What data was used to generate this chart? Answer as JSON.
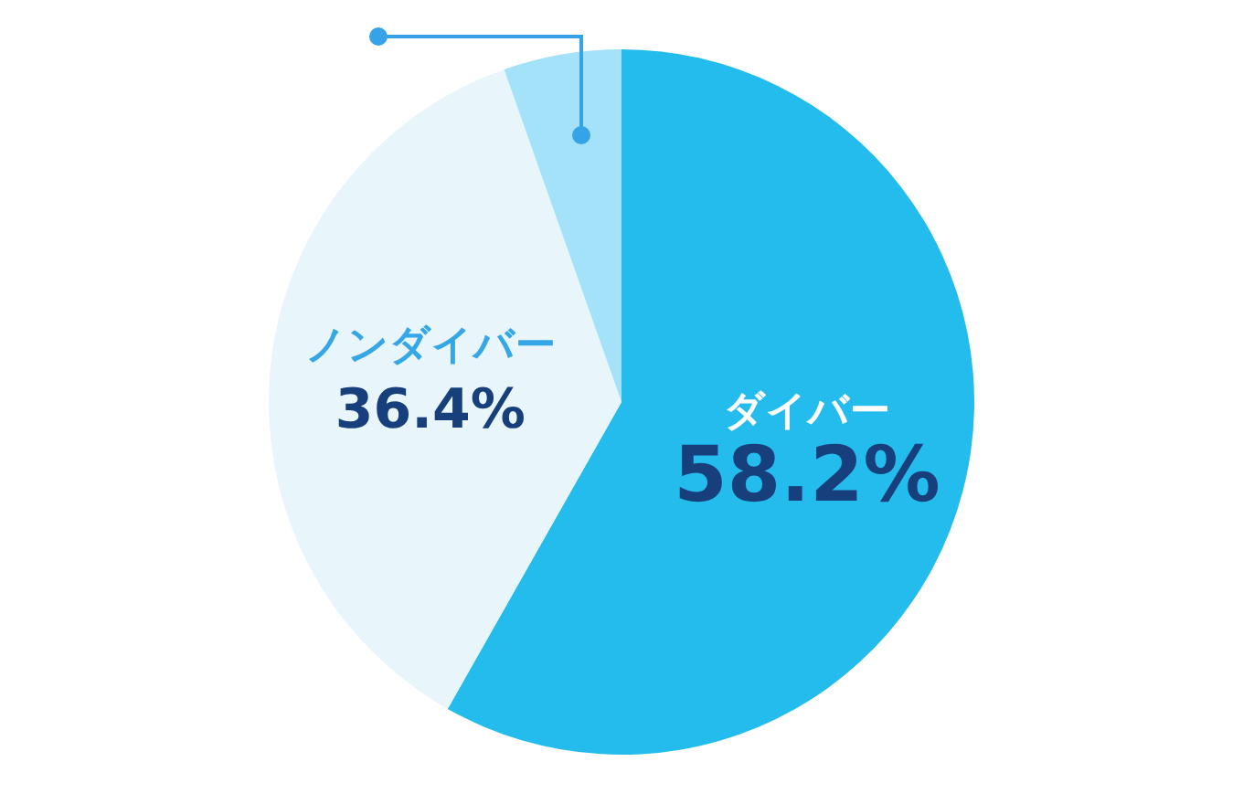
{
  "chart_data": {
    "type": "pie",
    "categories": [
      "ダイバー",
      "ノンダイバー",
      null
    ],
    "values": [
      58.2,
      36.4,
      5.4
    ],
    "colors": [
      "#24bcec",
      "#e8f6fc",
      "#a3e2f8"
    ],
    "value_labels": [
      "58.2%",
      "36.4%",
      null
    ]
  }
}
